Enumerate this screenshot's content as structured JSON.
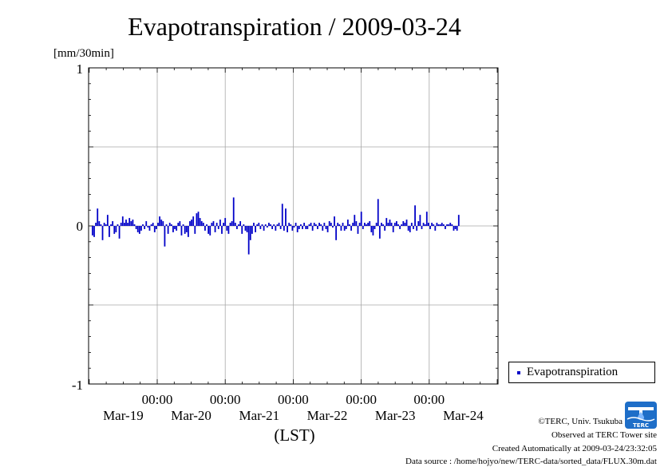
{
  "chart_data": {
    "type": "bar",
    "title": "Evapotranspiration / 2009-03-24",
    "unit_label": "[mm/30min]",
    "xlabel": "(LST)",
    "ylim": [
      -1,
      1
    ],
    "y_ticks": [
      "1",
      "0",
      "-1"
    ],
    "grid": true,
    "x_ticks": [
      {
        "time": "00:00",
        "date": "Mar-19"
      },
      {
        "time": "00:00",
        "date": "Mar-20"
      },
      {
        "time": "00:00",
        "date": "Mar-21"
      },
      {
        "time": "00:00",
        "date": "Mar-22"
      },
      {
        "time": "00:00",
        "date": "Mar-23"
      },
      {
        "time": "00:00",
        "date": "Mar-24"
      }
    ],
    "legend_placement": "bottom-right, outside plot",
    "series": [
      {
        "name": "Evapotranspiration",
        "color": "#0000c8",
        "start": "2009-03-18 00:00",
        "interval_minutes": 30,
        "values": [
          -0.06,
          -0.07,
          0.02,
          0.11,
          0.03,
          0.01,
          -0.09,
          0.02,
          0.01,
          0.07,
          -0.07,
          0.01,
          0.03,
          -0.05,
          -0.04,
          0.01,
          -0.08,
          0.02,
          0.06,
          0.02,
          0.04,
          0.02,
          0.05,
          0.03,
          0.04,
          0.01,
          -0.02,
          -0.04,
          -0.05,
          -0.03,
          0.01,
          -0.02,
          0.03,
          -0.01,
          -0.03,
          0.01,
          0.02,
          -0.04,
          -0.02,
          0.02,
          0.06,
          0.04,
          0.03,
          -0.13,
          0.01,
          -0.05,
          0.02,
          0.01,
          -0.04,
          -0.02,
          -0.03,
          0.02,
          0.03,
          -0.06,
          0.01,
          -0.05,
          -0.04,
          -0.07,
          0.03,
          0.04,
          0.06,
          -0.05,
          0.08,
          0.09,
          0.05,
          0.03,
          0.02,
          -0.03,
          0.01,
          -0.05,
          -0.06,
          0.02,
          0.03,
          -0.04,
          0.02,
          -0.02,
          0.04,
          -0.05,
          0.02,
          0.05,
          -0.03,
          -0.05,
          0.02,
          0.03,
          0.18,
          0.02,
          -0.02,
          0.01,
          0.03,
          -0.05,
          0.01,
          -0.03,
          -0.04,
          -0.18,
          -0.09,
          -0.05,
          0.02,
          -0.04,
          0.01,
          0.02,
          -0.02,
          0.01,
          -0.03,
          0.01,
          -0.01,
          0.02,
          0.01,
          -0.02,
          0.01,
          -0.03,
          0.01,
          0.02,
          -0.02,
          0.14,
          -0.03,
          0.11,
          -0.04,
          0.02,
          0.01,
          -0.03,
          -0.01,
          0.02,
          -0.04,
          -0.02,
          0.01,
          -0.02,
          0.02,
          -0.02,
          -0.02,
          0.01,
          0.02,
          -0.03,
          0.02,
          0.01,
          -0.02,
          0.02,
          0.01,
          -0.03,
          0.02,
          -0.02,
          -0.04,
          0.03,
          0.02,
          -0.01,
          0.06,
          -0.09,
          0.02,
          0.01,
          -0.03,
          0.02,
          -0.03,
          -0.02,
          0.04,
          0.01,
          -0.03,
          0.02,
          0.07,
          0.03,
          -0.05,
          0.02,
          0.09,
          -0.02,
          0.02,
          0.01,
          0.02,
          0.03,
          -0.04,
          -0.06,
          -0.02,
          0.02,
          0.17,
          -0.08,
          0.02,
          0.01,
          -0.03,
          0.05,
          0.02,
          0.04,
          0.02,
          -0.04,
          0.02,
          0.03,
          0.01,
          -0.02,
          0.01,
          0.03,
          0.02,
          0.04,
          -0.03,
          -0.04,
          0.02,
          -0.02,
          0.13,
          -0.03,
          0.03,
          0.07,
          -0.02,
          0.02,
          0.01,
          0.09,
          0.02,
          -0.02,
          0.02,
          0.01,
          -0.03,
          0.02,
          0.01,
          0.01,
          0.02,
          0.01,
          -0.02,
          0.01,
          0.01,
          0.02,
          0.01,
          -0.03,
          -0.02,
          -0.03,
          0.07
        ]
      }
    ]
  },
  "credits": {
    "copyright": "©TERC, Univ. Tsukuba",
    "observed": "Observed at TERC Tower site",
    "created": "Created Automatically at 2009-03-24/23:32:05",
    "source": "Data source : /home/hojyo/new/TERC-data/sorted_data/FLUX.30m.dat"
  },
  "logo_text": "TERC"
}
